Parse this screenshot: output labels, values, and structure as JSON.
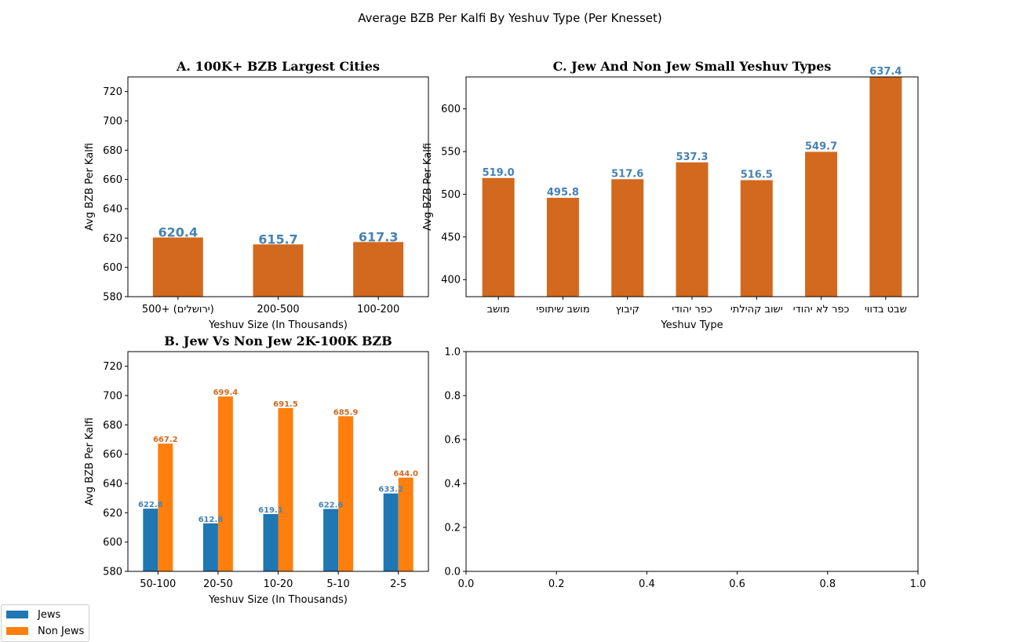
{
  "figure": {
    "suptitle": "Average BZB Per Kalfi By Yeshuv Type (Per Knesset)"
  },
  "colors": {
    "bar": "#d2691e",
    "label_blue": "#4682b4",
    "jews": "#1f77b4",
    "non_jews": "#ff7f0e",
    "non_jews_label": "#d2691e"
  },
  "legend": {
    "items": [
      {
        "label": "Jews",
        "color": "#1f77b4"
      },
      {
        "label": "Non Jews",
        "color": "#ff7f0e"
      }
    ]
  },
  "chart_data": [
    {
      "id": "A",
      "type": "bar",
      "title": "A. 100K+ BZB Largest Cities",
      "xlabel": "Yeshuv Size (In Thousands)",
      "ylabel": "Avg BZB Per Kalfi",
      "categories": [
        "500+ (ירושלים)",
        "200-500",
        "100-200"
      ],
      "values": [
        620.4,
        615.7,
        617.3
      ],
      "value_labels": [
        "620.4",
        "615.7",
        "617.3"
      ],
      "ylim": [
        580,
        730
      ],
      "yticks": [
        580,
        600,
        620,
        640,
        660,
        680,
        700,
        720
      ]
    },
    {
      "id": "C",
      "type": "bar",
      "title": "C. Jew And Non Jew Small Yeshuv Types",
      "xlabel": "Yeshuv Type",
      "ylabel": "Avg BZB Per Kalfi",
      "categories": [
        "מושב",
        "מושב שיתופי",
        "קיבוץ",
        "כפר יהודי",
        "ישוב קהילתי",
        "כפר לא יהודי",
        "שבט בדווי"
      ],
      "values": [
        519.0,
        495.8,
        517.6,
        537.3,
        516.5,
        549.7,
        637.4
      ],
      "value_labels": [
        "519.0",
        "495.8",
        "517.6",
        "537.3",
        "516.5",
        "549.7",
        "637.4"
      ],
      "ylim": [
        380,
        637.4
      ],
      "yticks": [
        400,
        450,
        500,
        550,
        600
      ]
    },
    {
      "id": "B",
      "type": "bar",
      "title": "B. Jew Vs Non Jew 2K-100K BZB",
      "xlabel": "Yeshuv Size (In Thousands)",
      "ylabel": "Avg BZB Per Kalfi",
      "categories": [
        "50-100",
        "20-50",
        "10-20",
        "5-10",
        "2-5"
      ],
      "series": [
        {
          "name": "Jews",
          "values": [
            622.8,
            612.8,
            619.1,
            622.6,
            633.2
          ],
          "value_labels": [
            "622.8",
            "612.8",
            "619.1",
            "622.6",
            "633.2"
          ]
        },
        {
          "name": "Non Jews",
          "values": [
            667.2,
            699.4,
            691.5,
            685.9,
            644.0
          ],
          "value_labels": [
            "667.2",
            "699.4",
            "691.5",
            "685.9",
            "644.0"
          ]
        }
      ],
      "ylim": [
        580,
        730
      ],
      "yticks": [
        580,
        600,
        620,
        640,
        660,
        680,
        700,
        720
      ]
    },
    {
      "id": "D",
      "type": "bar",
      "title": "",
      "xlabel": "",
      "ylabel": "",
      "categories": [],
      "values": [],
      "xlim": [
        0,
        1
      ],
      "ylim": [
        0,
        1
      ],
      "xticks": [
        "0.0",
        "0.2",
        "0.4",
        "0.6",
        "0.8",
        "1.0"
      ],
      "yticks": [
        "0.0",
        "0.2",
        "0.4",
        "0.6",
        "0.8",
        "1.0"
      ]
    }
  ]
}
